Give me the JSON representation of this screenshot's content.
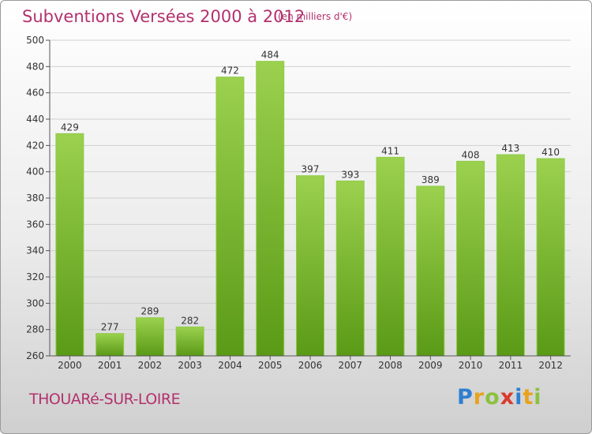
{
  "header": {
    "title": "Subventions Versées 2000 à 2012",
    "subtitle": "(en milliers d'€)"
  },
  "footer": {
    "commune": "THOUARé-SUR-LOIRE",
    "brand_letters": [
      {
        "ch": "P",
        "color": "#2f7fd1"
      },
      {
        "ch": "r",
        "color": "#e8a21c"
      },
      {
        "ch": "o",
        "color": "#8cc13f"
      },
      {
        "ch": "x",
        "color": "#d93a2f"
      },
      {
        "ch": "i",
        "color": "#2f7fd1"
      },
      {
        "ch": "t",
        "color": "#e8a21c"
      },
      {
        "ch": "i",
        "color": "#8cc13f"
      }
    ]
  },
  "colors": {
    "title": "#b3316d",
    "bar_top": "#9bd14e",
    "bar_bottom": "#5a9a16",
    "grid": "#d0d0d0",
    "axis": "#555555"
  },
  "chart_data": {
    "type": "bar",
    "categories": [
      "2000",
      "2001",
      "2002",
      "2003",
      "2004",
      "2005",
      "2006",
      "2007",
      "2008",
      "2009",
      "2010",
      "2011",
      "2012"
    ],
    "values": [
      429,
      277,
      289,
      282,
      472,
      484,
      397,
      393,
      411,
      389,
      408,
      413,
      410
    ],
    "ylim": [
      260,
      500
    ],
    "yticks": [
      260,
      280,
      300,
      320,
      340,
      360,
      380,
      400,
      420,
      440,
      460,
      480,
      500
    ],
    "grid": true,
    "data_labels": true
  }
}
